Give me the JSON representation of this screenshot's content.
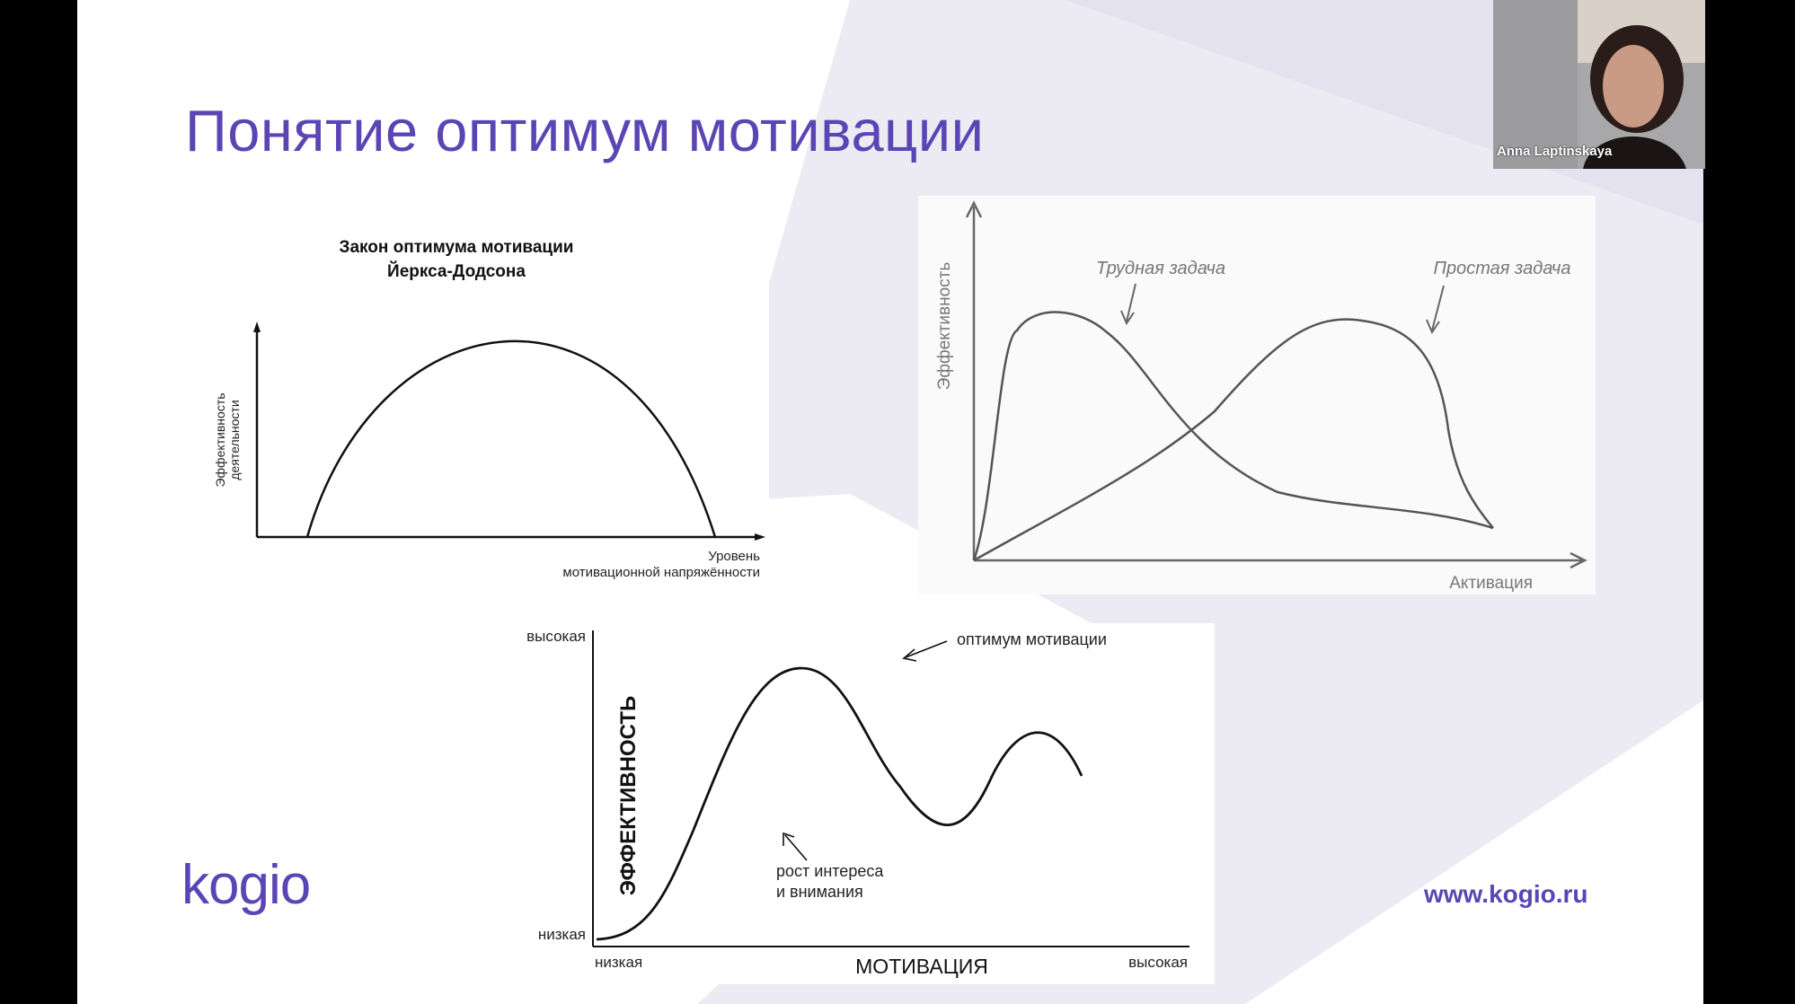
{
  "slide": {
    "title": "Понятие оптимум мотивации",
    "logo": "kogio",
    "website": "www.kogio.ru"
  },
  "video": {
    "participant_name": "Anna Laptinskaya"
  },
  "colors": {
    "brand": "#5b45b5",
    "background_shape": "#ecebf3"
  },
  "chart_data": [
    {
      "type": "line",
      "title": "Закон оптимума мотивации\nЙеркса-Додсона",
      "title_lines": [
        "Закон оптимума мотивации",
        "Йеркса-Додсона"
      ],
      "ylabel_lines": [
        "Эффективность",
        "деятельности"
      ],
      "xlabel_lines": [
        "Уровень",
        "мотивационной напряжённости"
      ],
      "series": [
        {
          "x": [
            0.12,
            0.2,
            0.3,
            0.4,
            0.5,
            0.6,
            0.7,
            0.8,
            0.88
          ],
          "y": [
            0,
            0.62,
            0.87,
            0.98,
            1.0,
            0.92,
            0.72,
            0.35,
            0
          ]
        }
      ]
    },
    {
      "type": "line",
      "ylabel": "Эффективность",
      "xlabel": "Активация",
      "annotations": [
        "Трудная задача",
        "Простая задача"
      ],
      "series": [
        {
          "x": [
            0,
            0.03,
            0.08,
            0.15,
            0.22,
            0.3,
            0.4,
            0.5,
            0.6,
            0.7,
            0.8,
            0.86
          ],
          "y": [
            0,
            0.3,
            0.78,
            0.9,
            0.88,
            0.75,
            0.5,
            0.3,
            0.2,
            0.17,
            0.14,
            0.1
          ]
        },
        {
          "x": [
            0,
            0.1,
            0.2,
            0.3,
            0.4,
            0.5,
            0.6,
            0.65,
            0.7,
            0.74,
            0.77,
            0.82,
            0.86
          ],
          "y": [
            0,
            0.12,
            0.3,
            0.45,
            0.62,
            0.8,
            0.94,
            0.97,
            0.92,
            0.7,
            0.35,
            0.15,
            0.1
          ]
        }
      ]
    },
    {
      "type": "line",
      "ylabel": "ЭФФЕКТИВНОСТЬ",
      "xlabel": "МОТИВАЦИЯ",
      "x_tick_labels": [
        "низкая",
        "высокая"
      ],
      "y_tick_labels": [
        "низкая",
        "высокая"
      ],
      "annotations": [
        "оптимум мотивации",
        "рост интереса",
        "и внимания"
      ],
      "series": [
        {
          "x": [
            0.0,
            0.1,
            0.2,
            0.3,
            0.4,
            0.45,
            0.5,
            0.6,
            0.65,
            0.7,
            0.8,
            0.88,
            0.95
          ],
          "y": [
            0.03,
            0.12,
            0.45,
            0.78,
            0.92,
            0.88,
            0.68,
            0.35,
            0.38,
            0.55,
            0.72,
            0.7,
            0.53
          ]
        }
      ]
    }
  ]
}
